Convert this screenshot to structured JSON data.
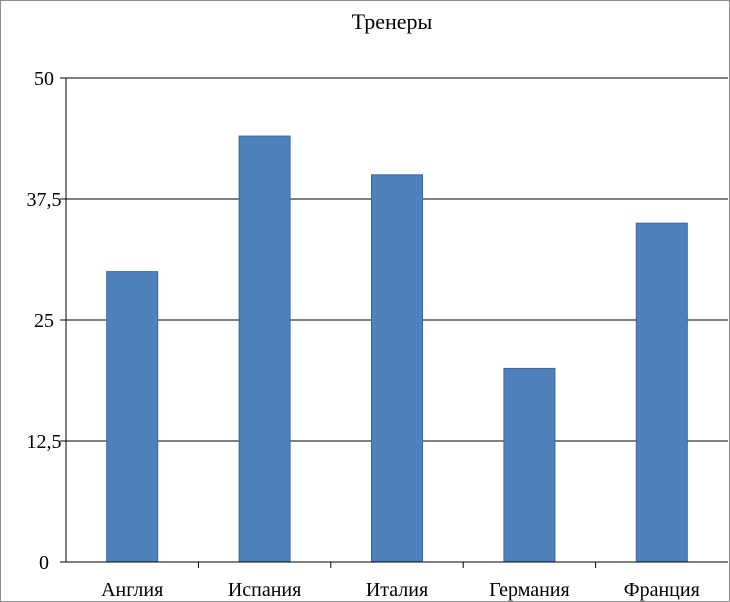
{
  "chart_data": {
    "type": "bar",
    "title": "Тренеры",
    "categories": [
      "Англия",
      "Испания",
      "Италия",
      "Германия",
      "Франция"
    ],
    "values": [
      30,
      44,
      40,
      20,
      35
    ],
    "ylim": [
      0,
      50
    ],
    "yticks": [
      "0",
      "12,5",
      "25",
      "37,5",
      "50"
    ],
    "ytick_values": [
      0,
      12.5,
      25,
      37.5,
      50
    ],
    "grid": true,
    "legend": "none",
    "bar_color": "#4f81bd",
    "bar_border": "#3a66a0"
  }
}
